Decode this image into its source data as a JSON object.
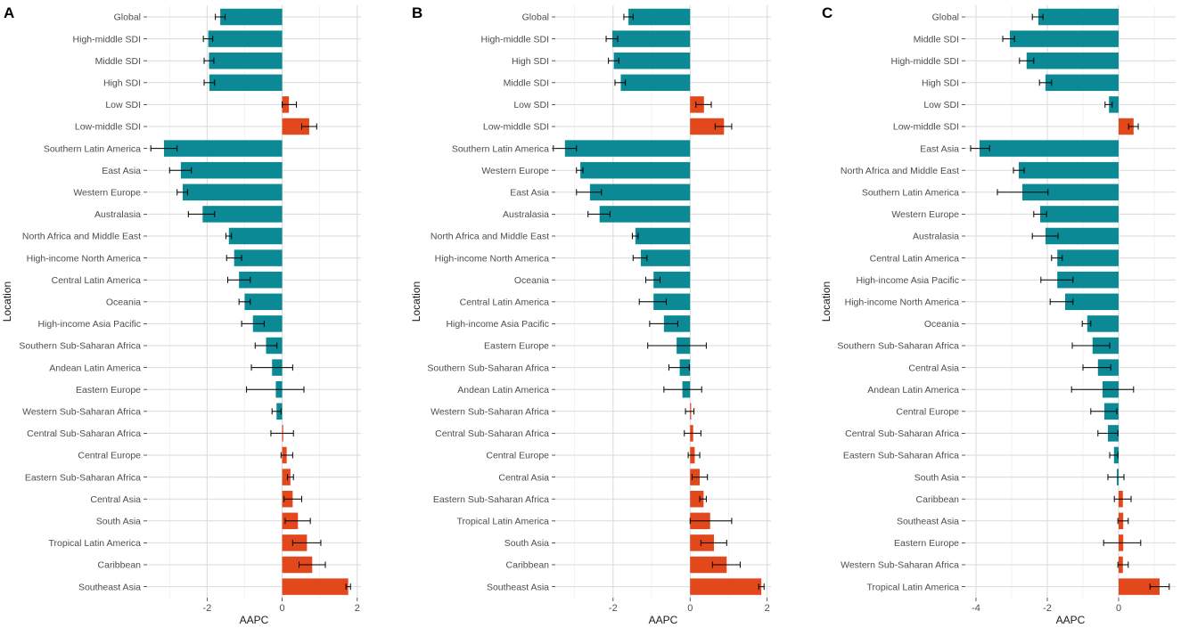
{
  "colors": {
    "negative": "#0b8a96",
    "positive": "#e2481c",
    "grid_major": "#d9d9d9",
    "grid_minor": "#ebebeb",
    "errorbar": "#000000"
  },
  "chart_data": [
    {
      "type": "bar",
      "orientation": "horizontal",
      "panel_label": "A",
      "xlabel": "AAPC",
      "ylabel": "Location",
      "xlim": [
        -3.6,
        2.1
      ],
      "xticks": [
        -2,
        0,
        2
      ],
      "categories": [
        "Global",
        "High-middle SDI",
        "Middle SDI",
        "High SDI",
        "Low SDI",
        "Low-middle SDI",
        "Southern Latin America",
        "East Asia",
        "Western Europe",
        "Australasia",
        "North Africa and Middle East",
        "High-income North America",
        "Central Latin America",
        "Oceania",
        "High-income Asia Pacific",
        "Southern Sub-Saharan Africa",
        "Andean Latin America",
        "Eastern Europe",
        "Western Sub-Saharan Africa",
        "Central Sub-Saharan Africa",
        "Central Europe",
        "Eastern Sub-Saharan Africa",
        "Central Asia",
        "South Asia",
        "Tropical Latin America",
        "Caribbean",
        "Southeast Asia"
      ],
      "values": [
        -1.65,
        -1.97,
        -1.95,
        -1.94,
        0.18,
        0.72,
        -3.15,
        -2.7,
        -2.65,
        -2.12,
        -1.42,
        -1.28,
        -1.15,
        -1.0,
        -0.78,
        -0.43,
        -0.27,
        -0.17,
        -0.15,
        0.0,
        0.12,
        0.22,
        0.28,
        0.42,
        0.66,
        0.8,
        1.76
      ],
      "ci_low": [
        -1.78,
        -2.1,
        -2.08,
        -2.08,
        0.0,
        0.52,
        -3.5,
        -3.0,
        -2.8,
        -2.5,
        -1.5,
        -1.48,
        -1.45,
        -1.15,
        -1.08,
        -0.72,
        -0.82,
        -0.95,
        -0.27,
        -0.3,
        -0.03,
        0.14,
        0.05,
        0.08,
        0.28,
        0.45,
        1.7
      ],
      "ci_high": [
        -1.52,
        -1.85,
        -1.82,
        -1.8,
        0.38,
        0.92,
        -2.8,
        -2.42,
        -2.52,
        -1.8,
        -1.35,
        -1.08,
        -0.85,
        -0.85,
        -0.48,
        -0.14,
        0.28,
        0.58,
        -0.03,
        0.3,
        0.28,
        0.3,
        0.52,
        0.75,
        1.03,
        1.15,
        1.82
      ]
    },
    {
      "type": "bar",
      "orientation": "horizontal",
      "panel_label": "B",
      "xlabel": "AAPC",
      "ylabel": "Location",
      "xlim": [
        -3.5,
        2.1
      ],
      "xticks": [
        -2,
        0,
        2
      ],
      "categories": [
        "Global",
        "High-middle SDI",
        "High SDI",
        "Middle SDI",
        "Low SDI",
        "Low-middle SDI",
        "Southern Latin America",
        "Western Europe",
        "East Asia",
        "Australasia",
        "North Africa and Middle East",
        "High-income North America",
        "Oceania",
        "Central Latin America",
        "High-income Asia Pacific",
        "Eastern Europe",
        "Southern Sub-Saharan Africa",
        "Andean Latin America",
        "Western Sub-Saharan Africa",
        "Central Sub-Saharan Africa",
        "Central Europe",
        "Central Asia",
        "Eastern Sub-Saharan Africa",
        "Tropical Latin America",
        "South Asia",
        "Caribbean",
        "Southeast Asia"
      ],
      "values": [
        -1.6,
        -2.02,
        -1.98,
        -1.8,
        0.36,
        0.88,
        -3.25,
        -2.85,
        -2.6,
        -2.35,
        -1.42,
        -1.28,
        -0.95,
        -0.95,
        -0.68,
        -0.35,
        -0.27,
        -0.2,
        0.0,
        0.08,
        0.12,
        0.25,
        0.35,
        0.52,
        0.62,
        0.95,
        1.85
      ],
      "ci_low": [
        -1.72,
        -2.18,
        -2.12,
        -1.95,
        0.15,
        0.65,
        -3.55,
        -2.95,
        -2.95,
        -2.65,
        -1.5,
        -1.48,
        -1.15,
        -1.32,
        -1.05,
        -1.1,
        -0.55,
        -0.68,
        -0.12,
        -0.15,
        -0.05,
        0.05,
        0.25,
        0.0,
        0.28,
        0.58,
        1.78
      ],
      "ci_high": [
        -1.48,
        -1.88,
        -1.85,
        -1.68,
        0.55,
        1.08,
        -2.95,
        -2.78,
        -2.3,
        -2.08,
        -1.35,
        -1.12,
        -0.78,
        -0.62,
        -0.32,
        0.42,
        -0.02,
        0.3,
        0.1,
        0.28,
        0.25,
        0.45,
        0.42,
        1.08,
        0.95,
        1.3,
        1.92
      ]
    },
    {
      "type": "bar",
      "orientation": "horizontal",
      "panel_label": "C",
      "xlabel": "AAPC",
      "ylabel": "Location",
      "xlim": [
        -4.3,
        1.6
      ],
      "xticks": [
        -4,
        -2,
        0
      ],
      "categories": [
        "Global",
        "Middle SDI",
        "High-middle SDI",
        "High SDI",
        "Low SDI",
        "Low-middle SDI",
        "East Asia",
        "North Africa and Middle East",
        "Southern Latin America",
        "Western Europe",
        "Australasia",
        "Central Latin America",
        "High-income Asia Pacific",
        "High-income North America",
        "Oceania",
        "Southern Sub-Saharan Africa",
        "Central Asia",
        "Andean Latin America",
        "Central Europe",
        "Central Sub-Saharan Africa",
        "Eastern Sub-Saharan Africa",
        "South Asia",
        "Caribbean",
        "Southeast Asia",
        "Eastern Europe",
        "Western Sub-Saharan Africa",
        "Tropical Latin America"
      ],
      "values": [
        -2.25,
        -3.05,
        -2.58,
        -2.05,
        -0.27,
        0.42,
        -3.9,
        -2.8,
        -2.7,
        -2.2,
        -2.05,
        -1.72,
        -1.72,
        -1.5,
        -0.88,
        -0.73,
        -0.58,
        -0.45,
        -0.4,
        -0.3,
        -0.13,
        -0.05,
        0.12,
        0.13,
        0.13,
        0.12,
        1.15
      ],
      "ci_low": [
        -2.42,
        -3.25,
        -2.78,
        -2.22,
        -0.38,
        0.28,
        -4.15,
        -2.95,
        -3.4,
        -2.38,
        -2.42,
        -1.88,
        -2.18,
        -1.92,
        -1.02,
        -1.3,
        -1.0,
        -1.32,
        -0.78,
        -0.58,
        -0.25,
        -0.3,
        -0.12,
        -0.02,
        -0.42,
        -0.02,
        0.88
      ],
      "ci_high": [
        -2.12,
        -2.92,
        -2.38,
        -1.88,
        -0.18,
        0.55,
        -3.62,
        -2.65,
        -1.98,
        -2.02,
        -1.7,
        -1.58,
        -1.28,
        -1.28,
        -0.78,
        -0.25,
        -0.22,
        0.42,
        -0.05,
        -0.02,
        -0.02,
        0.15,
        0.35,
        0.27,
        0.62,
        0.27,
        1.42
      ]
    }
  ]
}
